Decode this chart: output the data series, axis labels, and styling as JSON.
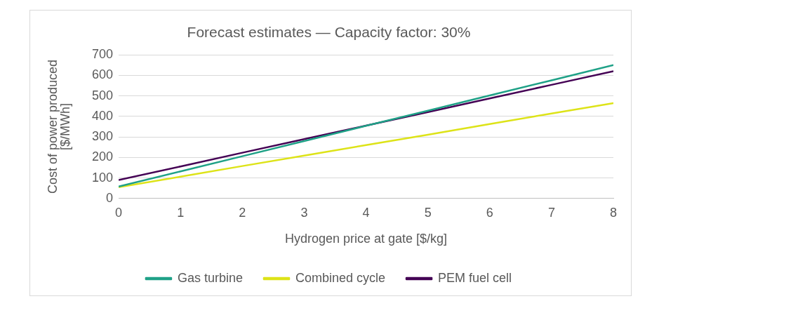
{
  "chart_data": {
    "type": "line",
    "title": "Forecast estimates — Capacity factor: 30%",
    "xlabel": "Hydrogen price at gate [$/kg]",
    "ylabel": "Cost of power produced [$/MWh]",
    "x": [
      0,
      1,
      2,
      3,
      4,
      5,
      6,
      7,
      8
    ],
    "series": [
      {
        "name": "Gas turbine",
        "color": "#1fa187",
        "values": [
          58,
          132,
          206,
          280,
          354,
          428,
          502,
          576,
          650
        ]
      },
      {
        "name": "Combined cycle",
        "color": "#dde318",
        "values": [
          55,
          106,
          158,
          209,
          260,
          311,
          363,
          414,
          465
        ]
      },
      {
        "name": "PEM fuel cell",
        "color": "#440154",
        "values": [
          90,
          156,
          223,
          289,
          355,
          421,
          488,
          554,
          620
        ]
      }
    ],
    "xlim": [
      0,
      8
    ],
    "xticks": [
      0,
      1,
      2,
      3,
      4,
      5,
      6,
      7,
      8
    ],
    "ylim": [
      0,
      700
    ],
    "yticks": [
      0,
      100,
      200,
      300,
      400,
      500,
      600,
      700
    ],
    "grid": "y",
    "legend": "bottom",
    "marker": "none",
    "line_style": "solid"
  }
}
